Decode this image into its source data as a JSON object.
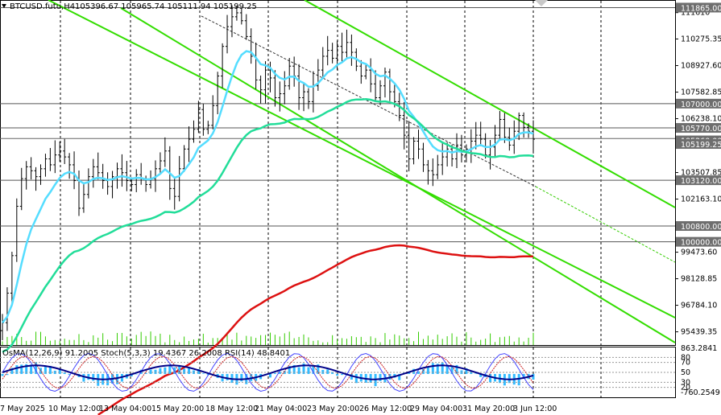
{
  "header": {
    "symbol": "BTCUSD.futu,H4",
    "ohlc": "105396.67 105965.74 105111.94 105199.25"
  },
  "indicator_header": {
    "text": "OsMA(12,26,9) 91.2005  Stoch(5,3,3) 19.4367 26.2008  RSI(14) 48.8401"
  },
  "chart_data": {
    "type": "candlestick",
    "y_axis_ticks": [
      "111610",
      "110275.35",
      "108927.60",
      "107582.85",
      "106238.10",
      "104893.35",
      "103507.85",
      "102163.10",
      "99473.60",
      "98128.85",
      "96784.10",
      "95439.35"
    ],
    "y_axis_tick_values": [
      111610,
      110275.35,
      108927.6,
      107582.85,
      106238.1,
      104893.35,
      103507.85,
      102163.1,
      99473.6,
      98128.85,
      96784.1,
      95439.35
    ],
    "y_range": [
      94770,
      112250
    ],
    "level_boxes": [
      {
        "label": "111865.00",
        "value": 111865
      },
      {
        "label": "107000.00",
        "value": 107000
      },
      {
        "label": "105770.00",
        "value": 105770
      },
      {
        "label": "105260.00",
        "value": 105260
      },
      {
        "label": "105199.25",
        "value": 105199.25
      },
      {
        "label": "103120.00",
        "value": 103120
      },
      {
        "label": "100800.00",
        "value": 100800
      },
      {
        "label": "100000.00",
        "value": 100000
      }
    ],
    "x_axis_labels": [
      "7 May 2025",
      "10 May 12:00",
      "13 May 04:00",
      "15 May 20:00",
      "18 May 12:00",
      "21 May 04:00",
      "23 May 20:00",
      "26 May 12:00",
      "29 May 04:00",
      "31 May 20:00",
      "3 Jun 12:00"
    ],
    "indicator_axis_labels": [
      "863.2841",
      "80",
      "70",
      "50",
      "30",
      "20",
      "-760.2549"
    ],
    "indicator_axis_values": [
      863.2841,
      80,
      70,
      50,
      30,
      20,
      -760.2549
    ],
    "closes": [
      95900,
      97400,
      99300,
      101800,
      103200,
      103800,
      103600,
      103300,
      103700,
      104200,
      103900,
      104400,
      104600,
      104300,
      103900,
      103100,
      101700,
      102400,
      103300,
      103800,
      103500,
      103100,
      102800,
      103300,
      103700,
      103500,
      103100,
      102900,
      103400,
      103200,
      102900,
      103200,
      103700,
      104100,
      104600,
      102700,
      102300,
      103700,
      104700,
      105200,
      105700,
      106700,
      105700,
      105900,
      106900,
      108400,
      109900,
      110900,
      111400,
      111600,
      111200,
      110400,
      109400,
      108200,
      107700,
      108700,
      108300,
      107300,
      107500,
      107900,
      108900,
      108400,
      107300,
      107600,
      107100,
      107900,
      108700,
      109400,
      109700,
      109300,
      109900,
      109600,
      110100,
      109600,
      108900,
      108400,
      108700,
      108000,
      107300,
      107900,
      108600,
      107600,
      107100,
      106400,
      105400,
      104200,
      105100,
      104700,
      103900,
      103600,
      103400,
      103900,
      104300,
      104700,
      104200,
      104900,
      104400,
      104700,
      105100,
      105400,
      105200,
      104400,
      104800,
      105400,
      106200,
      105300,
      104900,
      105600,
      106400,
      105800,
      105600,
      105200
    ]
  }
}
